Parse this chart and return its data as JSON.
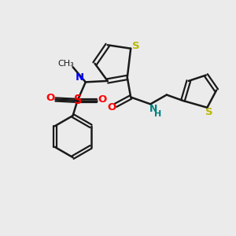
{
  "bg_color": "#ebebeb",
  "bond_color": "#1a1a1a",
  "S_color": "#b8b800",
  "N_color": "#0000ff",
  "O_color": "#ff0000",
  "NH_color": "#008080",
  "figsize": [
    3.0,
    3.0
  ],
  "dpi": 100,
  "xlim": [
    0,
    10
  ],
  "ylim": [
    0,
    10
  ]
}
